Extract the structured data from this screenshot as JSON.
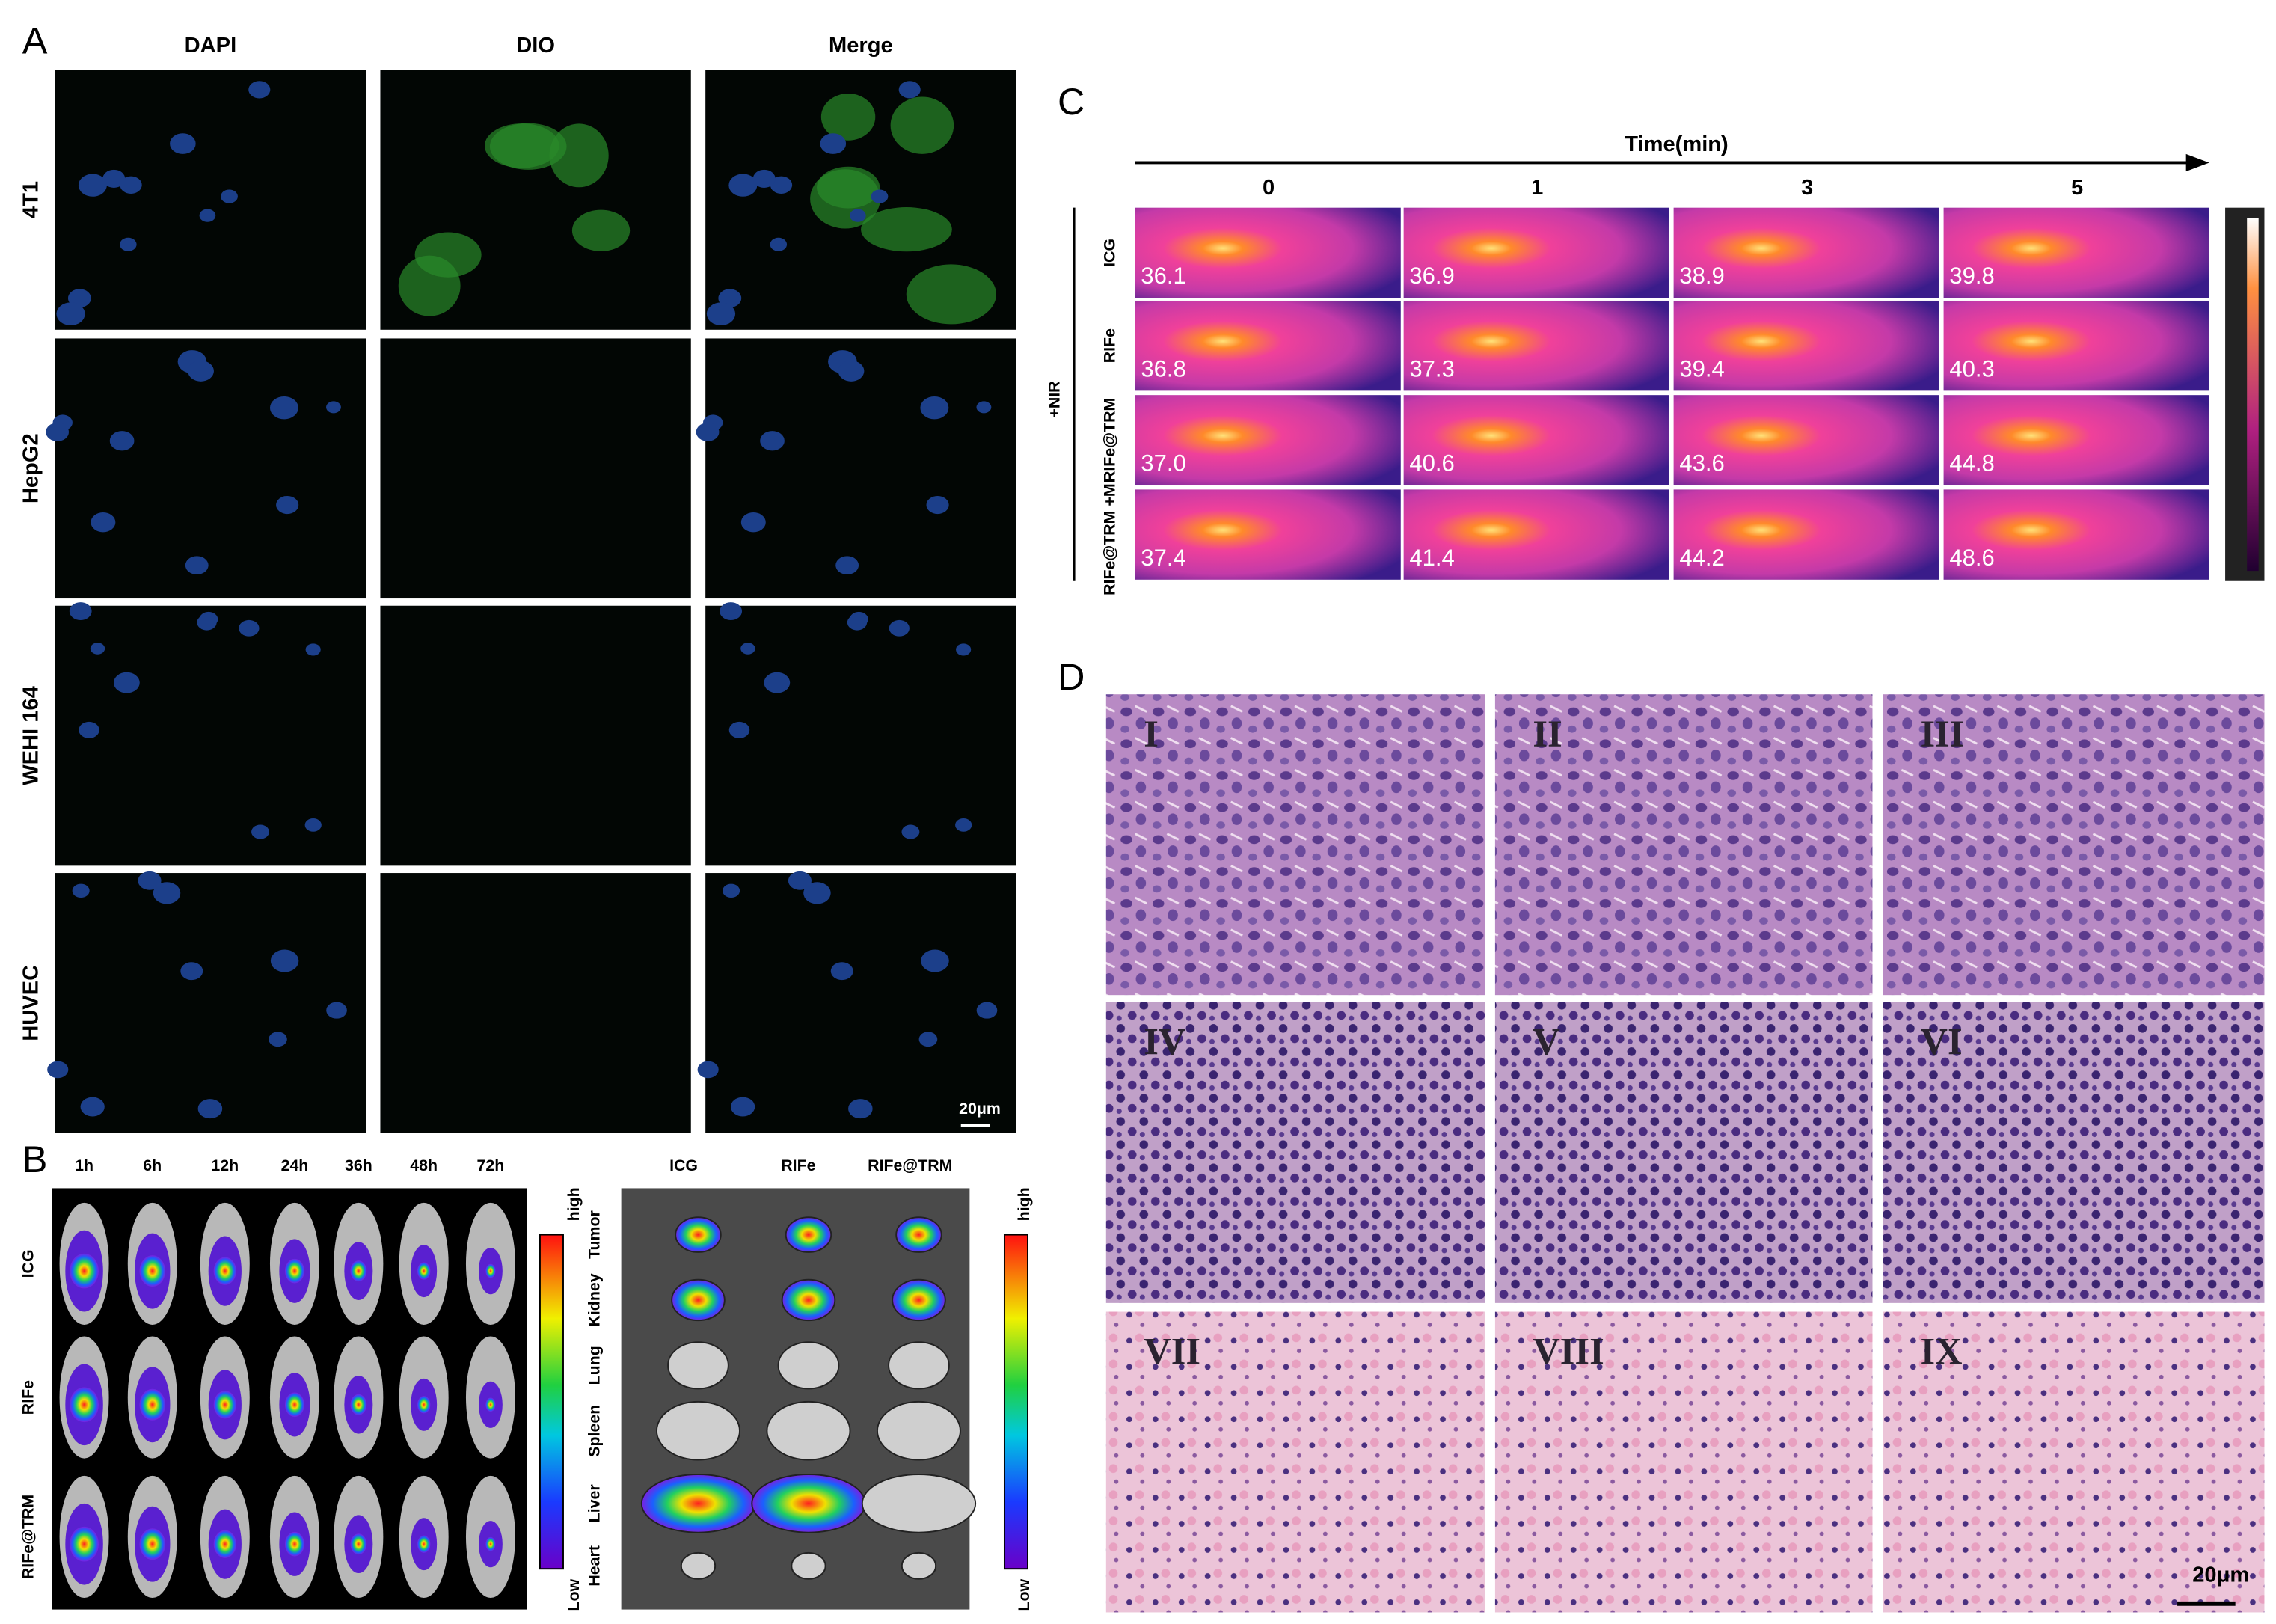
{
  "panel_a": {
    "label": "A",
    "columns": [
      "DAPI",
      "DIO",
      "Merge"
    ],
    "rows": [
      "4T1",
      "HepG2",
      "WEHI 164",
      "HUVEC"
    ],
    "scale_bar": "20μm"
  },
  "panel_b": {
    "label": "B",
    "time_points": [
      "1h",
      "6h",
      "12h",
      "24h",
      "36h",
      "48h",
      "72h"
    ],
    "groups": [
      "ICG",
      "RIFe",
      "RIFe@TRM"
    ],
    "colorbar_high": "high",
    "colorbar_low": "Low",
    "ex_vivo_columns": [
      "ICG",
      "RIFe",
      "RIFe@TRM"
    ],
    "organs": [
      "Tumor",
      "Kidney",
      "Lung",
      "Spleen",
      "Liver",
      "Heart"
    ]
  },
  "panel_c": {
    "label": "C",
    "axis_title": "Time(min)",
    "time_points": [
      "0",
      "1",
      "3",
      "5"
    ],
    "condition": "+NIR",
    "groups": [
      "ICG",
      "RIFe",
      "RIFe@TRM",
      "RIFe@TRM +MF"
    ],
    "temperatures": [
      [
        "36.1",
        "36.9",
        "38.9",
        "39.8"
      ],
      [
        "36.8",
        "37.3",
        "39.4",
        "40.3"
      ],
      [
        "37.0",
        "40.6",
        "43.6",
        "44.8"
      ],
      [
        "37.4",
        "41.4",
        "44.2",
        "48.6"
      ]
    ]
  },
  "panel_d": {
    "label": "D",
    "sections": [
      "I",
      "II",
      "III",
      "IV",
      "V",
      "VI",
      "VII",
      "VIII",
      "IX"
    ],
    "scale_bar": "20μm"
  }
}
